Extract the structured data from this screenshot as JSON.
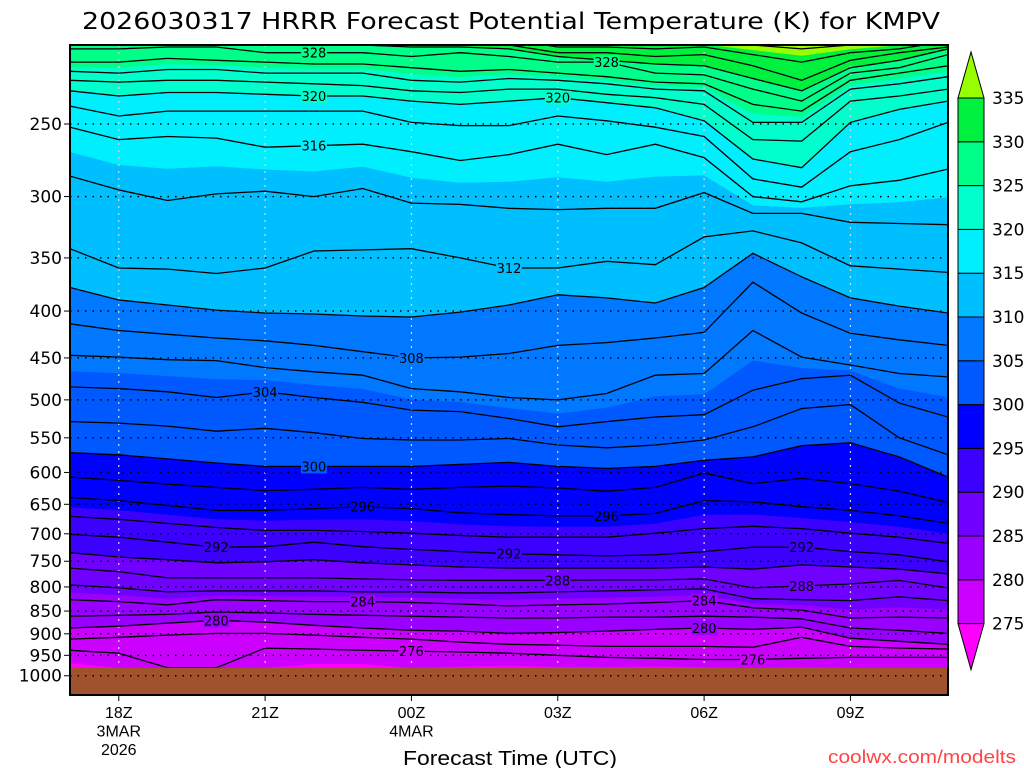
{
  "chart_data": {
    "type": "contour",
    "title": "2026030317 HRRR Forecast Potential Temperature (K) for KMPV",
    "xlabel": "Forecast Time (UTC)",
    "ylabel": "",
    "credit": "coolwx.com/modelts",
    "xlim_hours": [
      17,
      35
    ],
    "ylim_hpa": [
      1050,
      205
    ],
    "y_scale": "log",
    "times_hours": [
      17,
      18,
      19,
      20,
      21,
      22,
      23,
      24,
      25,
      26,
      27,
      28,
      29,
      30,
      31,
      32,
      33,
      34,
      35
    ],
    "x_ticks": [
      {
        "hour": 18,
        "lines": [
          "18Z",
          "3MAR",
          "2026"
        ]
      },
      {
        "hour": 21,
        "lines": [
          "21Z"
        ]
      },
      {
        "hour": 24,
        "lines": [
          "00Z",
          "4MAR"
        ]
      },
      {
        "hour": 27,
        "lines": [
          "03Z"
        ]
      },
      {
        "hour": 30,
        "lines": [
          "06Z"
        ]
      },
      {
        "hour": 33,
        "lines": [
          "09Z"
        ]
      }
    ],
    "y_ticks": [
      250,
      300,
      350,
      400,
      450,
      500,
      550,
      600,
      650,
      700,
      750,
      800,
      850,
      900,
      950,
      1000
    ],
    "surface_pressure": 980,
    "surface_theta": [
      274.6,
      275.3,
      276.0,
      276.0,
      275.3,
      274.7,
      274.7,
      275.2,
      274.9,
      274.8,
      274.9,
      274.9,
      274.8,
      274.9,
      275.1,
      274.9,
      275.0,
      275.1,
      275.1
    ],
    "isentropes": [
      {
        "level": 276,
        "pressure": [
          938,
          945,
          980,
          980,
          933,
          935,
          938,
          940,
          942,
          945,
          950,
          955,
          957,
          960,
          960,
          957,
          955,
          955,
          955
        ]
      },
      {
        "level": 278,
        "pressure": [
          912,
          908,
          903,
          899,
          899,
          903,
          908,
          912,
          919,
          924,
          926,
          929,
          929,
          929,
          931,
          908,
          929,
          933,
          935
        ]
      },
      {
        "level": 280,
        "pressure": [
          887,
          883,
          876,
          870,
          874,
          881,
          887,
          892,
          894,
          899,
          897,
          894,
          890,
          887,
          890,
          885,
          910,
          917,
          924
        ]
      },
      {
        "level": 282,
        "pressure": [
          861,
          859,
          857,
          852,
          854,
          857,
          859,
          861,
          863,
          865,
          865,
          863,
          863,
          861,
          863,
          867,
          887,
          892,
          899
        ]
      },
      {
        "level": 284,
        "pressure": [
          826,
          830,
          837,
          826,
          828,
          830,
          830,
          832,
          835,
          839,
          837,
          835,
          832,
          828,
          843,
          848,
          865,
          863,
          865
        ]
      },
      {
        "level": 286,
        "pressure": [
          796,
          802,
          810,
          808,
          808,
          808,
          810,
          810,
          812,
          812,
          810,
          808,
          806,
          804,
          824,
          826,
          828,
          820,
          828
        ]
      },
      {
        "level": 288,
        "pressure": [
          763,
          770,
          782,
          782,
          782,
          782,
          784,
          786,
          787,
          787,
          787,
          786,
          786,
          784,
          802,
          798,
          794,
          787,
          802
        ]
      },
      {
        "level": 290,
        "pressure": [
          734,
          742,
          747,
          753,
          751,
          747,
          753,
          757,
          761,
          763,
          763,
          763,
          763,
          761,
          765,
          757,
          761,
          765,
          774
        ]
      },
      {
        "level": 292,
        "pressure": [
          701,
          706,
          715,
          724,
          723,
          715,
          723,
          728,
          732,
          736,
          738,
          740,
          738,
          732,
          724,
          724,
          732,
          738,
          751
        ]
      },
      {
        "level": 294,
        "pressure": [
          670,
          675,
          682,
          689,
          694,
          694,
          696,
          699,
          703,
          706,
          706,
          706,
          699,
          691,
          687,
          691,
          699,
          706,
          717
        ]
      },
      {
        "level": 296,
        "pressure": [
          639,
          644,
          652,
          660,
          660,
          657,
          654,
          657,
          664,
          667,
          669,
          669,
          665,
          644,
          646,
          654,
          660,
          669,
          682
        ]
      },
      {
        "level": 298,
        "pressure": [
          607,
          612,
          618,
          623,
          628,
          626,
          623,
          626,
          623,
          621,
          624,
          629,
          623,
          601,
          617,
          609,
          617,
          629,
          647
        ]
      },
      {
        "level": 300,
        "pressure": [
          571,
          574,
          580,
          586,
          591,
          591,
          591,
          591,
          588,
          585,
          591,
          594,
          591,
          582,
          577,
          561,
          557,
          577,
          607
        ]
      },
      {
        "level": 302,
        "pressure": [
          528,
          530,
          534,
          541,
          537,
          543,
          551,
          553,
          553,
          551,
          560,
          564,
          560,
          553,
          535,
          511,
          506,
          550,
          574
        ]
      },
      {
        "level": 304,
        "pressure": [
          484,
          486,
          490,
          497,
          490,
          497,
          503,
          513,
          515,
          524,
          535,
          528,
          522,
          519,
          488,
          474,
          470,
          504,
          522
        ]
      },
      {
        "level": 306,
        "pressure": [
          447,
          449,
          452,
          453,
          461,
          466,
          470,
          486,
          490,
          497,
          500,
          492,
          470,
          468,
          420,
          449,
          458,
          468,
          472
        ]
      },
      {
        "level": 308,
        "pressure": [
          413,
          420,
          424,
          428,
          431,
          436,
          443,
          450,
          449,
          445,
          436,
          433,
          428,
          422,
          372,
          402,
          423,
          430,
          436
        ]
      },
      {
        "level": 310,
        "pressure": [
          377,
          389,
          394,
          399,
          402,
          403,
          405,
          406,
          401,
          394,
          384,
          387,
          392,
          377,
          346,
          367,
          387,
          395,
          402
        ]
      },
      {
        "level": 312,
        "pressure": [
          342,
          359,
          360,
          364,
          359,
          344,
          343,
          342,
          350,
          359,
          359,
          353,
          356,
          332,
          327,
          337,
          357,
          360,
          363
        ]
      },
      {
        "level": 314,
        "pressure": [
          285,
          295,
          303,
          298,
          296,
          300,
          294,
          305,
          306,
          309,
          310,
          309,
          309,
          297,
          313,
          313,
          320,
          321,
          322
        ]
      },
      {
        "level": 316,
        "pressure": [
          252,
          260,
          258,
          259,
          265,
          264,
          263,
          268,
          274,
          270,
          263,
          270,
          263,
          272,
          300,
          304,
          292,
          288,
          280
        ]
      },
      {
        "level": 318,
        "pressure": [
          239,
          245,
          242,
          242,
          242,
          242,
          242,
          249,
          251,
          251,
          245,
          248,
          252,
          258,
          287,
          293,
          268,
          260,
          249
        ]
      },
      {
        "level": 320,
        "pressure": [
          230,
          233,
          231,
          231,
          232,
          233,
          233,
          236,
          238,
          236,
          234,
          237,
          240,
          248,
          273,
          279,
          249,
          241,
          236
        ]
      },
      {
        "level": 322,
        "pressure": [
          224,
          225,
          224,
          224,
          225,
          226,
          227,
          230,
          231,
          229,
          229,
          232,
          234,
          238,
          260,
          261,
          236,
          233,
          229
        ]
      },
      {
        "level": 324,
        "pressure": [
          219,
          220,
          218,
          218,
          220,
          220,
          220,
          224,
          225,
          223,
          224,
          226,
          229,
          230,
          249,
          249,
          229,
          226,
          222
        ]
      },
      {
        "level": 326,
        "pressure": [
          214,
          214,
          212,
          213,
          214,
          215,
          215,
          217,
          219,
          218,
          220,
          222,
          225,
          226,
          238,
          242,
          224,
          220,
          216
        ]
      },
      {
        "level": 328,
        "pressure": [
          207,
          207,
          206,
          206,
          209,
          209,
          209,
          211,
          209,
          211,
          214,
          214,
          220,
          221,
          229,
          236,
          220,
          217,
          210
        ]
      },
      {
        "level": 330,
        "pressure": [
          204,
          203,
          203,
          203,
          205,
          205,
          205,
          206,
          206,
          207,
          211,
          213,
          215,
          216,
          223,
          230,
          217,
          213,
          207
        ]
      },
      {
        "level": 332,
        "pressure": [
          201,
          201,
          200,
          200,
          202,
          202,
          202,
          203,
          203,
          205,
          209,
          209,
          211,
          210,
          216,
          224,
          213,
          209,
          206
        ]
      },
      {
        "level": 334,
        "pressure": [
          200,
          200,
          199,
          199,
          200,
          200,
          200,
          202,
          201,
          202,
          206,
          206,
          207,
          206,
          210,
          214,
          209,
          207,
          203
        ]
      },
      {
        "level": 336,
        "pressure": [
          197,
          197,
          197,
          197,
          197,
          197,
          197,
          197,
          197,
          197,
          197,
          197,
          197,
          203,
          205,
          207,
          205,
          203,
          201
        ]
      }
    ],
    "contour_labels": [
      {
        "text": "328",
        "level": 328,
        "hour": 22
      },
      {
        "text": "328",
        "level": 328,
        "hour": 28
      },
      {
        "text": "320",
        "level": 320,
        "hour": 22
      },
      {
        "text": "320",
        "level": 320,
        "hour": 27
      },
      {
        "text": "316",
        "level": 316,
        "hour": 22
      },
      {
        "text": "312",
        "level": 312,
        "hour": 26
      },
      {
        "text": "308",
        "level": 308,
        "hour": 24
      },
      {
        "text": "304",
        "level": 304,
        "hour": 21
      },
      {
        "text": "300",
        "level": 300,
        "hour": 22
      },
      {
        "text": "296",
        "level": 296,
        "hour": 23
      },
      {
        "text": "296",
        "level": 296,
        "hour": 28
      },
      {
        "text": "292",
        "level": 292,
        "hour": 20
      },
      {
        "text": "292",
        "level": 292,
        "hour": 26
      },
      {
        "text": "292",
        "level": 292,
        "hour": 32
      },
      {
        "text": "288",
        "level": 288,
        "hour": 27
      },
      {
        "text": "288",
        "level": 288,
        "hour": 32
      },
      {
        "text": "284",
        "level": 284,
        "hour": 23
      },
      {
        "text": "284",
        "level": 284,
        "hour": 30
      },
      {
        "text": "280",
        "level": 280,
        "hour": 20
      },
      {
        "text": "280",
        "level": 280,
        "hour": 30
      },
      {
        "text": "276",
        "level": 276,
        "hour": 24
      },
      {
        "text": "276",
        "level": 276,
        "hour": 31
      }
    ],
    "color_levels": [
      {
        "min": null,
        "max": 275,
        "color": "#ff00ff"
      },
      {
        "min": 275,
        "max": 280,
        "color": "#cc00ff"
      },
      {
        "min": 280,
        "max": 285,
        "color": "#9900ff"
      },
      {
        "min": 285,
        "max": 290,
        "color": "#7000ff"
      },
      {
        "min": 290,
        "max": 295,
        "color": "#3c00ff"
      },
      {
        "min": 295,
        "max": 300,
        "color": "#0000ff"
      },
      {
        "min": 300,
        "max": 305,
        "color": "#0058ff"
      },
      {
        "min": 305,
        "max": 310,
        "color": "#0078ff"
      },
      {
        "min": 310,
        "max": 315,
        "color": "#00bfff"
      },
      {
        "min": 315,
        "max": 320,
        "color": "#00efff"
      },
      {
        "min": 320,
        "max": 325,
        "color": "#00ffcc"
      },
      {
        "min": 325,
        "max": 330,
        "color": "#00ff88"
      },
      {
        "min": 330,
        "max": 335,
        "color": "#00f040"
      },
      {
        "min": 335,
        "max": null,
        "color": "#99ff00"
      }
    ],
    "colorbar_labels": [
      "335",
      "330",
      "325",
      "320",
      "315",
      "310",
      "305",
      "300",
      "295",
      "290",
      "285",
      "280",
      "275"
    ],
    "ground_color": "#a0522d",
    "credit_color": "#ff4444"
  }
}
